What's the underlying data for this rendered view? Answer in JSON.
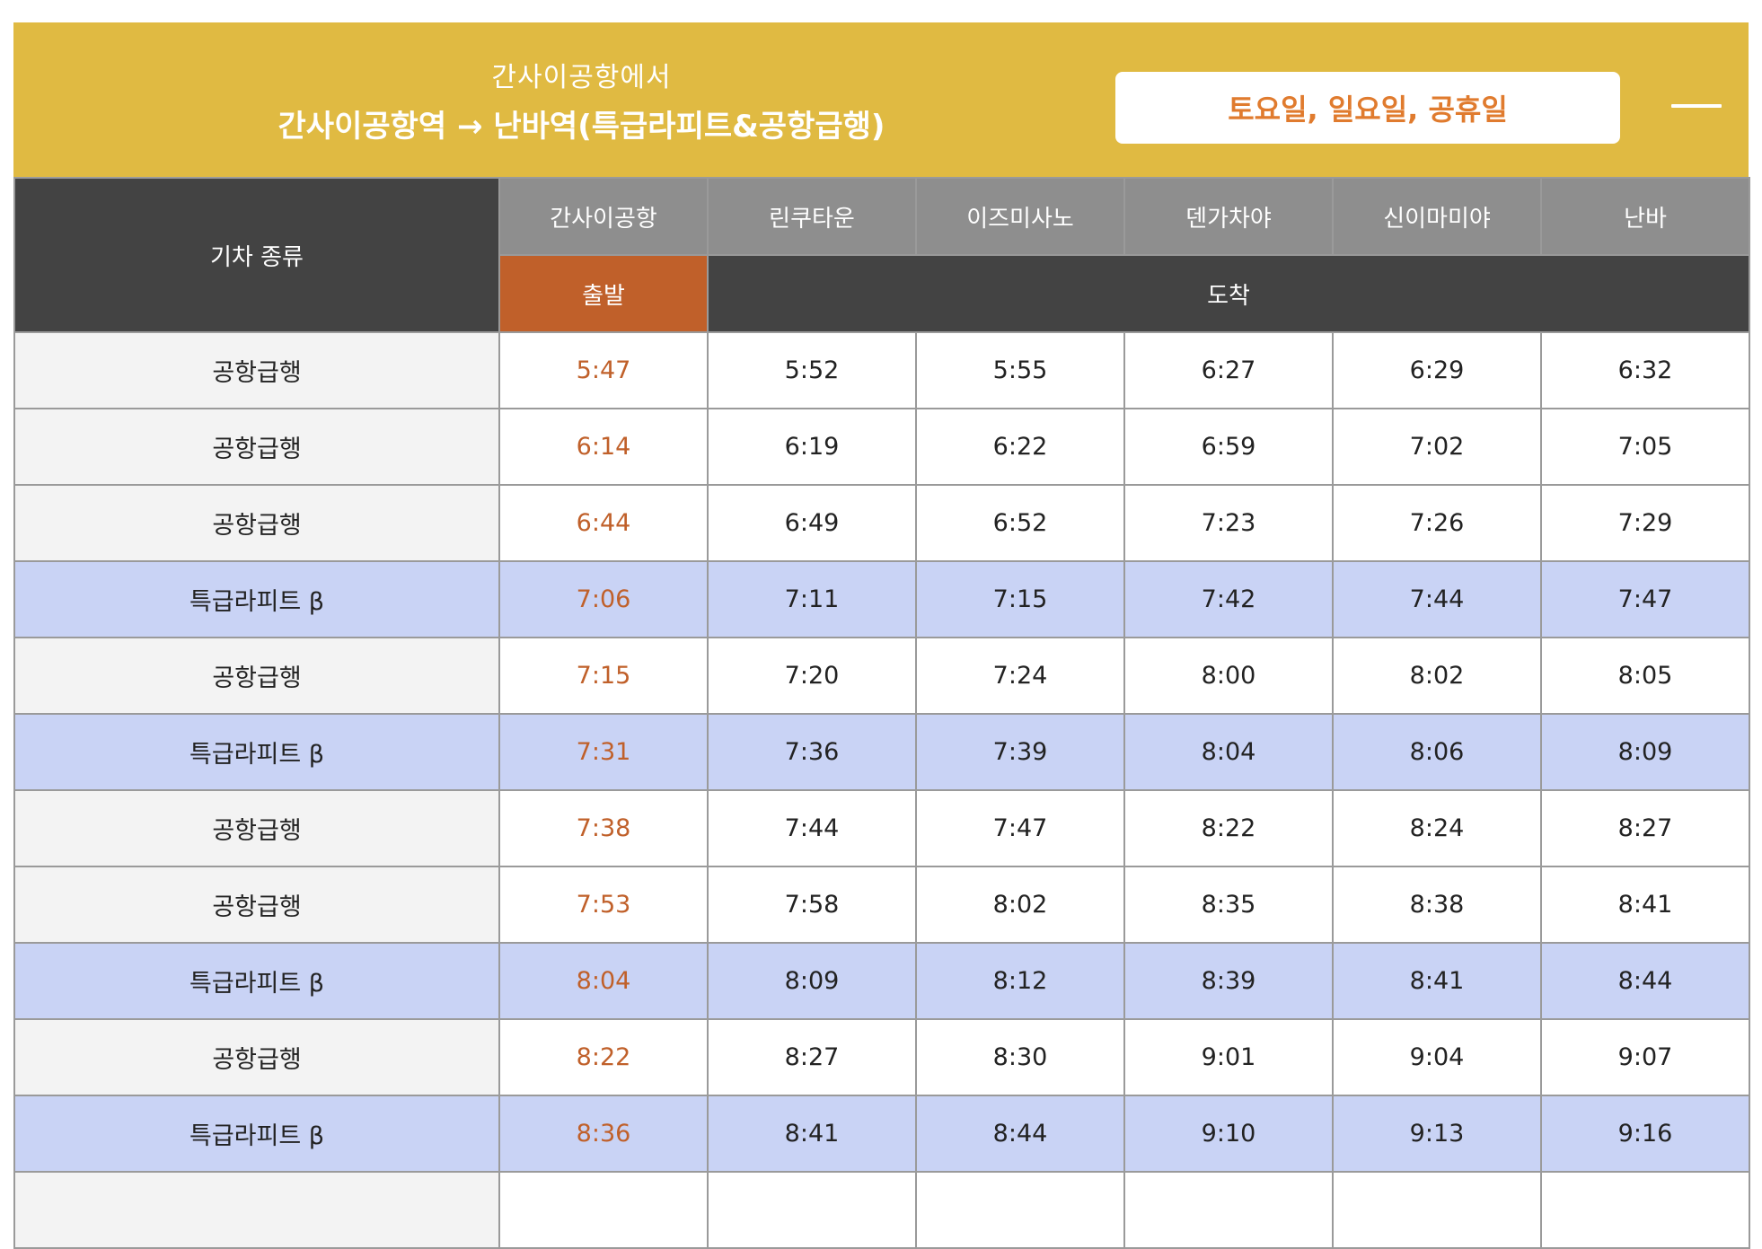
{
  "header": {
    "subtitle": "간사이공항에서",
    "title": "간사이공항역 → 난바역(특급라피트&공항급행)",
    "day_selector": "토요일, 일요일, 공휴일",
    "colors": {
      "background": "#e0ba42",
      "selector_text": "#e07b2e"
    }
  },
  "table": {
    "type_header": "기차 종류",
    "stations": [
      "간사이공항",
      "린쿠타운",
      "이즈미사노",
      "덴가차야",
      "신이마미야",
      "난바"
    ],
    "depart_label": "출발",
    "arrive_label": "도착",
    "colors": {
      "departure_time": "#c0602a",
      "rapit_row": "#c9d3f5",
      "header_dark": "#434343"
    },
    "rows": [
      {
        "type": "공항급행",
        "rapit": false,
        "times": [
          "5:47",
          "5:52",
          "5:55",
          "6:27",
          "6:29",
          "6:32"
        ]
      },
      {
        "type": "공항급행",
        "rapit": false,
        "times": [
          "6:14",
          "6:19",
          "6:22",
          "6:59",
          "7:02",
          "7:05"
        ]
      },
      {
        "type": "공항급행",
        "rapit": false,
        "times": [
          "6:44",
          "6:49",
          "6:52",
          "7:23",
          "7:26",
          "7:29"
        ]
      },
      {
        "type": "특급라피트 β",
        "rapit": true,
        "times": [
          "7:06",
          "7:11",
          "7:15",
          "7:42",
          "7:44",
          "7:47"
        ]
      },
      {
        "type": "공항급행",
        "rapit": false,
        "times": [
          "7:15",
          "7:20",
          "7:24",
          "8:00",
          "8:02",
          "8:05"
        ]
      },
      {
        "type": "특급라피트 β",
        "rapit": true,
        "times": [
          "7:31",
          "7:36",
          "7:39",
          "8:04",
          "8:06",
          "8:09"
        ]
      },
      {
        "type": "공항급행",
        "rapit": false,
        "times": [
          "7:38",
          "7:44",
          "7:47",
          "8:22",
          "8:24",
          "8:27"
        ]
      },
      {
        "type": "공항급행",
        "rapit": false,
        "times": [
          "7:53",
          "7:58",
          "8:02",
          "8:35",
          "8:38",
          "8:41"
        ]
      },
      {
        "type": "특급라피트 β",
        "rapit": true,
        "times": [
          "8:04",
          "8:09",
          "8:12",
          "8:39",
          "8:41",
          "8:44"
        ]
      },
      {
        "type": "공항급행",
        "rapit": false,
        "times": [
          "8:22",
          "8:27",
          "8:30",
          "9:01",
          "9:04",
          "9:07"
        ]
      },
      {
        "type": "특급라피트 β",
        "rapit": true,
        "times": [
          "8:36",
          "8:41",
          "8:44",
          "9:10",
          "9:13",
          "9:16"
        ]
      },
      {
        "type": "",
        "rapit": false,
        "times": [
          "",
          "",
          "",
          "",
          "",
          ""
        ]
      }
    ]
  }
}
